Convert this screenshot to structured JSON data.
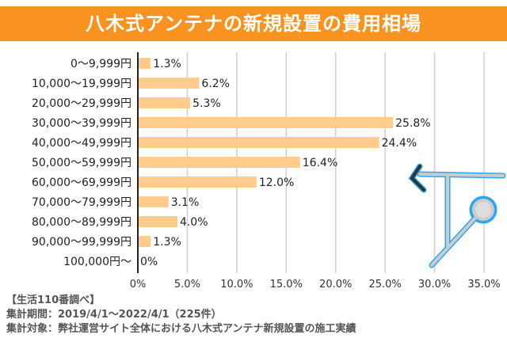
{
  "title": "八木式アンテナの新規設置の費用相場",
  "chart_data": {
    "type": "bar",
    "orientation": "horizontal",
    "title": "八木式アンテナの新規設置の費用相場",
    "categories": [
      "0～9,999円",
      "10,000～19,999円",
      "20,000～29,999円",
      "30,000～39,999円",
      "40,000～49,999円",
      "50,000～59,999円",
      "60,000～69,999円",
      "70,000～79,999円",
      "80,000～89,999円",
      "90,000～99,999円",
      "100,000円～"
    ],
    "values": [
      1.3,
      6.2,
      5.3,
      25.8,
      24.4,
      16.4,
      12.0,
      3.1,
      4.0,
      1.3,
      0
    ],
    "data_labels": [
      "1.3%",
      "6.2%",
      "5.3%",
      "25.8%",
      "24.4%",
      "16.4%",
      "12.0%",
      "3.1%",
      "4.0%",
      "1.3%",
      "0%"
    ],
    "xlim": [
      0,
      35
    ],
    "xticks": [
      "0%",
      "5.0%",
      "10.0%",
      "15.0%",
      "20.0%",
      "25.0%",
      "30.0%",
      "35.0%"
    ],
    "grid": true,
    "bar_color": "#ffcc8c"
  },
  "notes": {
    "source": "【生活110番調べ】",
    "period": "集計期間：2019/4/1～2022/4/1（225件）",
    "target": "集計対象：弊社運営サイト全体における八木式アンテナ新規設置の施工実績"
  }
}
